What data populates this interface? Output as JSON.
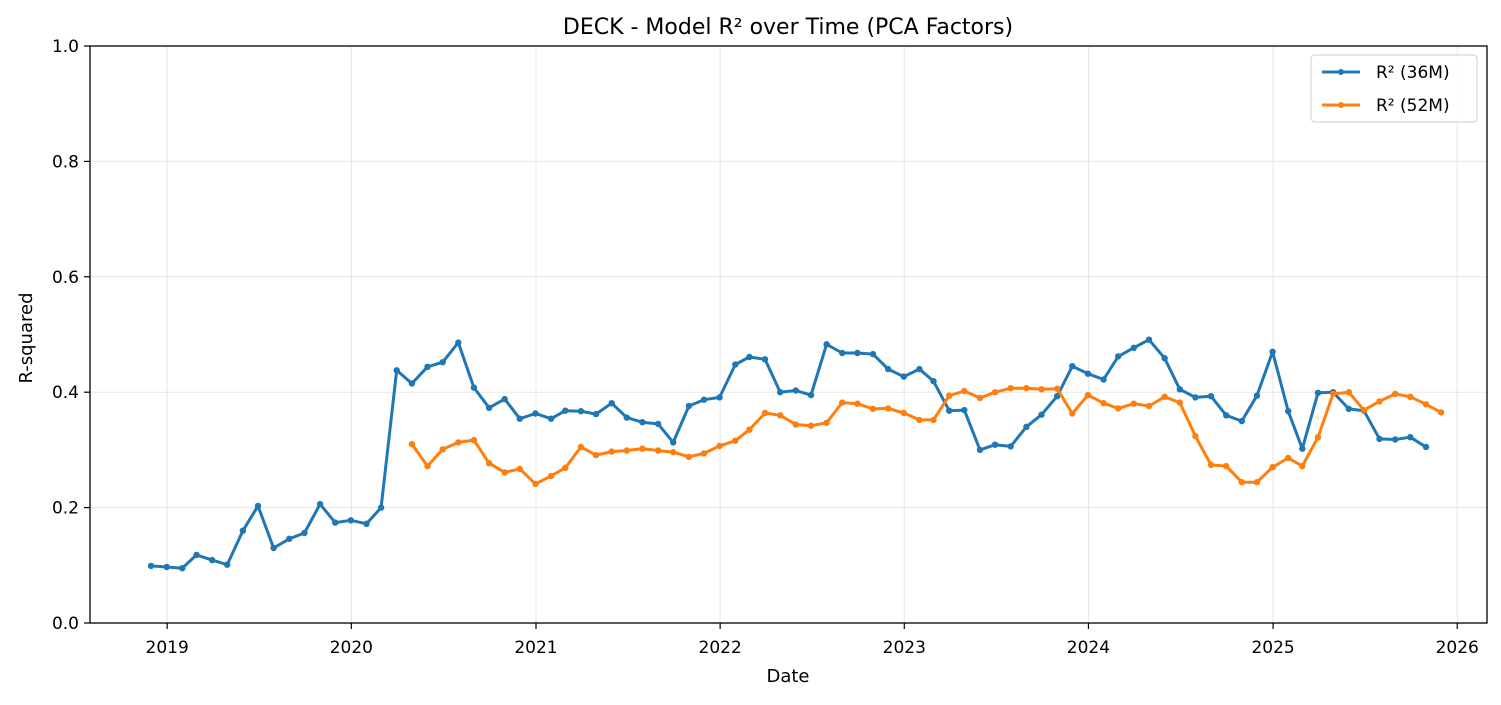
{
  "chart_data": {
    "type": "line",
    "title": "DECK - Model R² over Time (PCA Factors)",
    "xlabel": "Date",
    "ylabel": "R-squared",
    "xlim": [
      "2018-08-01",
      "2026-03-01"
    ],
    "ylim": [
      0,
      1
    ],
    "x_ticks": [
      "2019-01-01",
      "2020-01-01",
      "2021-01-01",
      "2022-01-01",
      "2023-01-01",
      "2024-01-01",
      "2025-01-01",
      "2026-01-01"
    ],
    "x_tick_labels": [
      "2019",
      "2020",
      "2021",
      "2022",
      "2023",
      "2024",
      "2025",
      "2026"
    ],
    "y_ticks": [
      0.0,
      0.2,
      0.4,
      0.6,
      0.8,
      1.0
    ],
    "y_tick_labels": [
      "0.0",
      "0.2",
      "0.4",
      "0.6",
      "0.8",
      "1.0"
    ],
    "grid": true,
    "legend_position": "top-right",
    "series": [
      {
        "name": "R² (36M)",
        "color": "#1f77b4",
        "start": "2018-11",
        "values": [
          0.099,
          0.097,
          0.095,
          0.118,
          0.109,
          0.101,
          0.16,
          0.203,
          0.13,
          0.146,
          0.156,
          0.206,
          0.174,
          0.178,
          0.172,
          0.2,
          0.438,
          0.415,
          0.444,
          0.452,
          0.486,
          0.408,
          0.373,
          0.388,
          0.354,
          0.363,
          0.354,
          0.368,
          0.367,
          0.362,
          0.381,
          0.356,
          0.348,
          0.345,
          0.313,
          0.376,
          0.387,
          0.391,
          0.448,
          0.461,
          0.457,
          0.4,
          0.403,
          0.395,
          0.483,
          0.468,
          0.468,
          0.466,
          0.44,
          0.427,
          0.44,
          0.419,
          0.368,
          0.369,
          0.3,
          0.309,
          0.306,
          0.34,
          0.361,
          0.393,
          0.445,
          0.432,
          0.422,
          0.462,
          0.477,
          0.491,
          0.459,
          0.405,
          0.391,
          0.393,
          0.36,
          0.35,
          0.394,
          0.47,
          0.367,
          0.302,
          0.399,
          0.4,
          0.371,
          0.368,
          0.319,
          0.318,
          0.322,
          0.305
        ]
      },
      {
        "name": "R² (52M)",
        "color": "#ff7f0e",
        "start": "2020-04",
        "values": [
          0.31,
          0.272,
          0.301,
          0.313,
          0.317,
          0.277,
          0.261,
          0.267,
          0.241,
          0.255,
          0.269,
          0.305,
          0.291,
          0.297,
          0.299,
          0.302,
          0.299,
          0.296,
          0.288,
          0.294,
          0.307,
          0.316,
          0.335,
          0.364,
          0.36,
          0.344,
          0.342,
          0.347,
          0.382,
          0.38,
          0.371,
          0.372,
          0.364,
          0.352,
          0.352,
          0.394,
          0.402,
          0.39,
          0.4,
          0.407,
          0.407,
          0.405,
          0.406,
          0.363,
          0.395,
          0.381,
          0.372,
          0.38,
          0.376,
          0.392,
          0.382,
          0.324,
          0.274,
          0.272,
          0.244,
          0.244,
          0.27,
          0.286,
          0.272,
          0.322,
          0.397,
          0.4,
          0.369,
          0.384,
          0.397,
          0.392,
          0.379,
          0.365
        ]
      }
    ]
  }
}
